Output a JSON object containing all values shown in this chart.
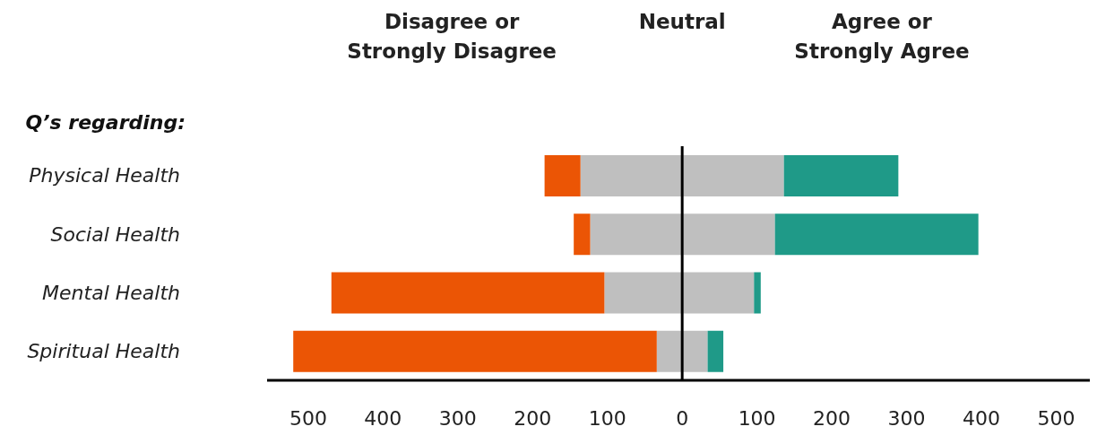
{
  "chart_data": {
    "type": "bar",
    "orientation": "horizontal",
    "stacked": true,
    "ylabel": "Q’s regarding:",
    "legend": "top",
    "categories": [
      "Physical Health",
      "Social Health",
      "Mental Health",
      "Spiritual Health"
    ],
    "series": [
      {
        "name": "Neutral",
        "color": "#bfbfbf",
        "values": [
          -136,
          -123,
          -104,
          -34
        ]
      },
      {
        "color": "#bfbfbf",
        "values": [
          136,
          124,
          96,
          34
        ]
      },
      {
        "name": "Disagree or Strongly Disagree",
        "color": "#eb5505",
        "values": [
          -48,
          -22,
          -365,
          -486
        ]
      },
      {
        "name": "Agree or Strongly Agree",
        "color": "#1f9a88",
        "values": [
          153,
          272,
          9,
          21
        ]
      }
    ],
    "xlim": [
      -555,
      545
    ],
    "xticks": [
      {
        "value": -500,
        "label": "500"
      },
      {
        "value": -400,
        "label": "400"
      },
      {
        "value": -300,
        "label": "300"
      },
      {
        "value": -200,
        "label": "200"
      },
      {
        "value": -100,
        "label": "100"
      },
      0,
      100,
      200,
      300,
      400,
      500
    ],
    "ref_lines": [
      {
        "axis": "x",
        "value": 0,
        "color": "#000000"
      }
    ]
  }
}
